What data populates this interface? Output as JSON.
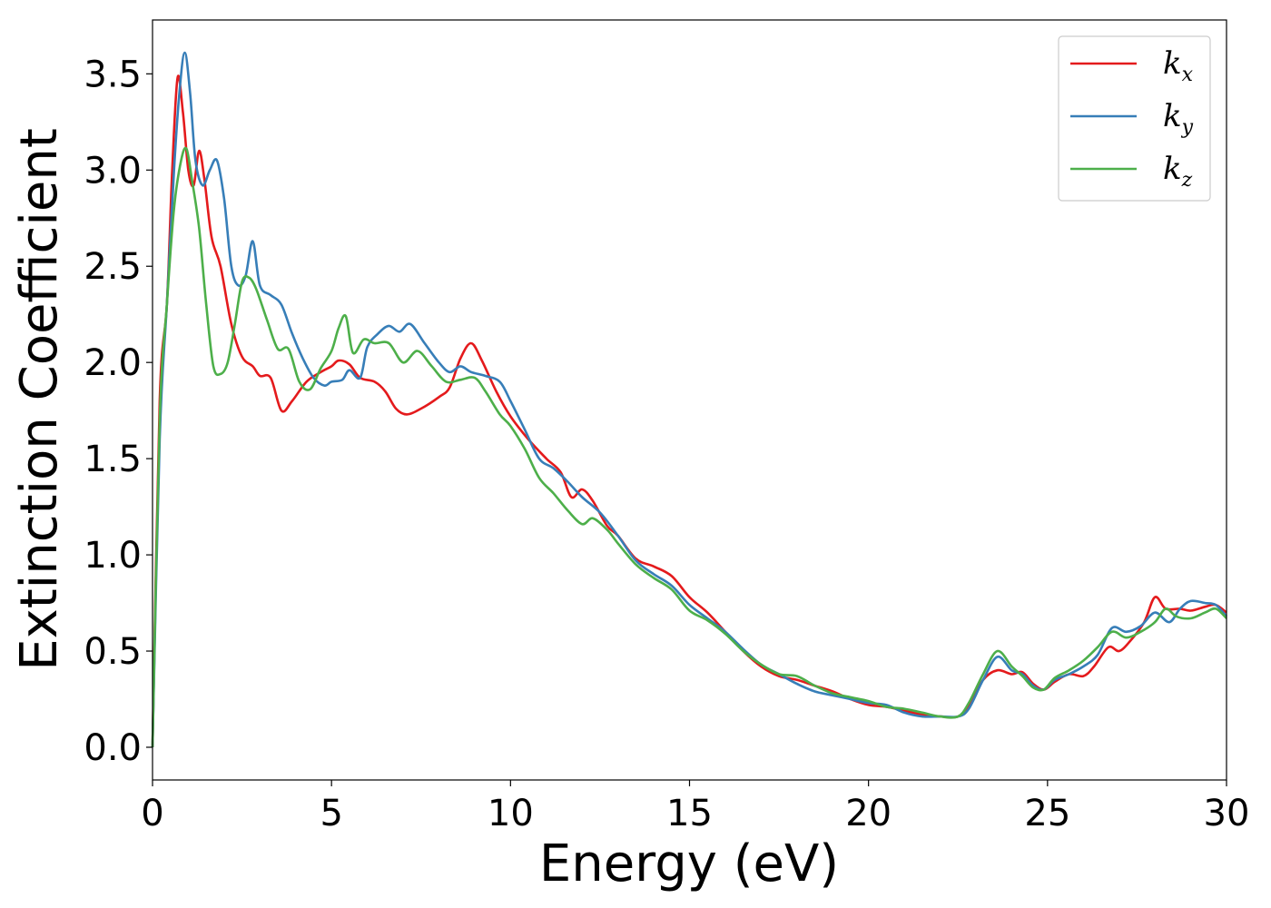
{
  "chart_data": {
    "type": "line",
    "title": "",
    "xlabel": "Energy (eV)",
    "ylabel": "Extinction Coefficient",
    "xlim": [
      0,
      30
    ],
    "ylim": [
      -0.17,
      3.78
    ],
    "xticks": [
      0,
      5,
      10,
      15,
      20,
      25,
      30
    ],
    "xtick_labels": [
      "0",
      "5",
      "10",
      "15",
      "20",
      "25",
      "30"
    ],
    "yticks": [
      0.0,
      0.5,
      1.0,
      1.5,
      2.0,
      2.5,
      3.0,
      3.5
    ],
    "ytick_labels": [
      "0.0",
      "0.5",
      "1.0",
      "1.5",
      "2.0",
      "2.5",
      "3.0",
      "3.5"
    ],
    "grid": false,
    "legend_position": "top-right",
    "series": [
      {
        "name": "k_x",
        "label_base": "k",
        "label_sub": "x",
        "color": "#e41a1c",
        "points": [
          [
            0,
            0
          ],
          [
            0.2,
            1.8
          ],
          [
            0.4,
            2.3
          ],
          [
            0.55,
            3.0
          ],
          [
            0.7,
            3.48
          ],
          [
            0.85,
            3.3
          ],
          [
            1.0,
            3.0
          ],
          [
            1.15,
            2.92
          ],
          [
            1.3,
            3.1
          ],
          [
            1.45,
            2.95
          ],
          [
            1.65,
            2.65
          ],
          [
            1.9,
            2.5
          ],
          [
            2.2,
            2.2
          ],
          [
            2.5,
            2.03
          ],
          [
            2.8,
            1.98
          ],
          [
            3.0,
            1.93
          ],
          [
            3.3,
            1.92
          ],
          [
            3.6,
            1.75
          ],
          [
            3.9,
            1.8
          ],
          [
            4.3,
            1.9
          ],
          [
            4.7,
            1.95
          ],
          [
            5.0,
            1.98
          ],
          [
            5.2,
            2.01
          ],
          [
            5.5,
            1.99
          ],
          [
            5.8,
            1.92
          ],
          [
            6.2,
            1.9
          ],
          [
            6.5,
            1.85
          ],
          [
            6.8,
            1.76
          ],
          [
            7.1,
            1.73
          ],
          [
            7.5,
            1.76
          ],
          [
            8.0,
            1.82
          ],
          [
            8.3,
            1.87
          ],
          [
            8.6,
            2.02
          ],
          [
            8.9,
            2.1
          ],
          [
            9.2,
            2.01
          ],
          [
            9.6,
            1.85
          ],
          [
            10.0,
            1.72
          ],
          [
            10.5,
            1.6
          ],
          [
            11.0,
            1.5
          ],
          [
            11.4,
            1.43
          ],
          [
            11.7,
            1.3
          ],
          [
            12.0,
            1.34
          ],
          [
            12.3,
            1.28
          ],
          [
            12.7,
            1.15
          ],
          [
            13.0,
            1.1
          ],
          [
            13.5,
            0.98
          ],
          [
            14.0,
            0.94
          ],
          [
            14.5,
            0.89
          ],
          [
            15.0,
            0.78
          ],
          [
            15.5,
            0.7
          ],
          [
            16.0,
            0.6
          ],
          [
            16.5,
            0.5
          ],
          [
            17.0,
            0.42
          ],
          [
            17.5,
            0.37
          ],
          [
            18.0,
            0.35
          ],
          [
            18.5,
            0.32
          ],
          [
            19.0,
            0.29
          ],
          [
            19.5,
            0.25
          ],
          [
            20.0,
            0.22
          ],
          [
            20.5,
            0.21
          ],
          [
            21.0,
            0.19
          ],
          [
            21.5,
            0.17
          ],
          [
            22.0,
            0.16
          ],
          [
            22.5,
            0.16
          ],
          [
            22.8,
            0.22
          ],
          [
            23.2,
            0.35
          ],
          [
            23.6,
            0.4
          ],
          [
            24.0,
            0.38
          ],
          [
            24.3,
            0.39
          ],
          [
            24.6,
            0.33
          ],
          [
            24.9,
            0.3
          ],
          [
            25.2,
            0.34
          ],
          [
            25.6,
            0.38
          ],
          [
            26.0,
            0.37
          ],
          [
            26.3,
            0.42
          ],
          [
            26.7,
            0.52
          ],
          [
            27.0,
            0.5
          ],
          [
            27.3,
            0.55
          ],
          [
            27.7,
            0.65
          ],
          [
            28.0,
            0.78
          ],
          [
            28.3,
            0.72
          ],
          [
            28.7,
            0.72
          ],
          [
            29.0,
            0.71
          ],
          [
            29.4,
            0.73
          ],
          [
            29.7,
            0.74
          ],
          [
            30.0,
            0.7
          ]
        ]
      },
      {
        "name": "k_y",
        "label_base": "k",
        "label_sub": "y",
        "color": "#377eb8",
        "points": [
          [
            0,
            0
          ],
          [
            0.2,
            1.6
          ],
          [
            0.4,
            2.3
          ],
          [
            0.6,
            3.0
          ],
          [
            0.75,
            3.4
          ],
          [
            0.9,
            3.61
          ],
          [
            1.05,
            3.4
          ],
          [
            1.2,
            3.05
          ],
          [
            1.4,
            2.92
          ],
          [
            1.6,
            3.0
          ],
          [
            1.8,
            3.05
          ],
          [
            2.0,
            2.85
          ],
          [
            2.2,
            2.5
          ],
          [
            2.4,
            2.4
          ],
          [
            2.6,
            2.45
          ],
          [
            2.8,
            2.63
          ],
          [
            3.0,
            2.4
          ],
          [
            3.3,
            2.35
          ],
          [
            3.6,
            2.3
          ],
          [
            3.9,
            2.15
          ],
          [
            4.2,
            2.02
          ],
          [
            4.5,
            1.92
          ],
          [
            4.8,
            1.88
          ],
          [
            5.0,
            1.9
          ],
          [
            5.3,
            1.91
          ],
          [
            5.5,
            1.96
          ],
          [
            5.8,
            1.92
          ],
          [
            6.0,
            2.08
          ],
          [
            6.3,
            2.15
          ],
          [
            6.6,
            2.19
          ],
          [
            6.9,
            2.16
          ],
          [
            7.2,
            2.2
          ],
          [
            7.6,
            2.1
          ],
          [
            8.0,
            2.0
          ],
          [
            8.3,
            1.95
          ],
          [
            8.6,
            1.98
          ],
          [
            8.9,
            1.95
          ],
          [
            9.3,
            1.93
          ],
          [
            9.7,
            1.9
          ],
          [
            10.0,
            1.8
          ],
          [
            10.4,
            1.65
          ],
          [
            10.8,
            1.5
          ],
          [
            11.2,
            1.45
          ],
          [
            11.6,
            1.38
          ],
          [
            12.0,
            1.3
          ],
          [
            12.5,
            1.22
          ],
          [
            13.0,
            1.1
          ],
          [
            13.5,
            0.97
          ],
          [
            14.0,
            0.9
          ],
          [
            14.5,
            0.84
          ],
          [
            15.0,
            0.74
          ],
          [
            15.5,
            0.67
          ],
          [
            16.0,
            0.6
          ],
          [
            16.5,
            0.51
          ],
          [
            17.0,
            0.43
          ],
          [
            17.5,
            0.38
          ],
          [
            18.0,
            0.33
          ],
          [
            18.5,
            0.29
          ],
          [
            19.0,
            0.27
          ],
          [
            19.5,
            0.25
          ],
          [
            20.0,
            0.23
          ],
          [
            20.5,
            0.22
          ],
          [
            21.0,
            0.18
          ],
          [
            21.5,
            0.16
          ],
          [
            22.0,
            0.16
          ],
          [
            22.5,
            0.16
          ],
          [
            22.8,
            0.2
          ],
          [
            23.2,
            0.35
          ],
          [
            23.6,
            0.47
          ],
          [
            24.0,
            0.4
          ],
          [
            24.3,
            0.38
          ],
          [
            24.6,
            0.32
          ],
          [
            24.9,
            0.3
          ],
          [
            25.2,
            0.35
          ],
          [
            25.6,
            0.38
          ],
          [
            26.0,
            0.42
          ],
          [
            26.4,
            0.48
          ],
          [
            26.8,
            0.62
          ],
          [
            27.2,
            0.6
          ],
          [
            27.6,
            0.63
          ],
          [
            28.0,
            0.7
          ],
          [
            28.4,
            0.65
          ],
          [
            28.7,
            0.72
          ],
          [
            29.0,
            0.76
          ],
          [
            29.4,
            0.75
          ],
          [
            29.7,
            0.74
          ],
          [
            30.0,
            0.68
          ]
        ]
      },
      {
        "name": "k_z",
        "label_base": "k",
        "label_sub": "z",
        "color": "#4daf4a",
        "points": [
          [
            0,
            0
          ],
          [
            0.2,
            1.7
          ],
          [
            0.4,
            2.3
          ],
          [
            0.6,
            2.8
          ],
          [
            0.8,
            3.05
          ],
          [
            0.95,
            3.11
          ],
          [
            1.1,
            2.95
          ],
          [
            1.3,
            2.7
          ],
          [
            1.5,
            2.3
          ],
          [
            1.7,
            1.98
          ],
          [
            1.9,
            1.94
          ],
          [
            2.1,
            2.0
          ],
          [
            2.3,
            2.2
          ],
          [
            2.5,
            2.42
          ],
          [
            2.7,
            2.44
          ],
          [
            2.9,
            2.38
          ],
          [
            3.2,
            2.22
          ],
          [
            3.5,
            2.07
          ],
          [
            3.8,
            2.07
          ],
          [
            4.1,
            1.9
          ],
          [
            4.4,
            1.86
          ],
          [
            4.7,
            1.97
          ],
          [
            5.0,
            2.06
          ],
          [
            5.2,
            2.18
          ],
          [
            5.4,
            2.24
          ],
          [
            5.6,
            2.05
          ],
          [
            5.9,
            2.12
          ],
          [
            6.2,
            2.1
          ],
          [
            6.6,
            2.1
          ],
          [
            7.0,
            2.0
          ],
          [
            7.4,
            2.06
          ],
          [
            7.8,
            1.98
          ],
          [
            8.2,
            1.9
          ],
          [
            8.6,
            1.91
          ],
          [
            9.0,
            1.92
          ],
          [
            9.3,
            1.85
          ],
          [
            9.7,
            1.73
          ],
          [
            10.0,
            1.67
          ],
          [
            10.4,
            1.55
          ],
          [
            10.8,
            1.4
          ],
          [
            11.2,
            1.32
          ],
          [
            11.6,
            1.23
          ],
          [
            12.0,
            1.16
          ],
          [
            12.3,
            1.19
          ],
          [
            12.7,
            1.13
          ],
          [
            13.0,
            1.06
          ],
          [
            13.5,
            0.95
          ],
          [
            14.0,
            0.88
          ],
          [
            14.5,
            0.82
          ],
          [
            15.0,
            0.71
          ],
          [
            15.5,
            0.66
          ],
          [
            16.0,
            0.59
          ],
          [
            16.5,
            0.5
          ],
          [
            17.0,
            0.43
          ],
          [
            17.5,
            0.38
          ],
          [
            18.0,
            0.37
          ],
          [
            18.5,
            0.32
          ],
          [
            19.0,
            0.28
          ],
          [
            19.5,
            0.26
          ],
          [
            20.0,
            0.24
          ],
          [
            20.5,
            0.21
          ],
          [
            21.0,
            0.2
          ],
          [
            21.5,
            0.18
          ],
          [
            22.0,
            0.16
          ],
          [
            22.5,
            0.16
          ],
          [
            22.8,
            0.23
          ],
          [
            23.2,
            0.38
          ],
          [
            23.6,
            0.5
          ],
          [
            24.0,
            0.42
          ],
          [
            24.3,
            0.37
          ],
          [
            24.6,
            0.31
          ],
          [
            24.9,
            0.3
          ],
          [
            25.2,
            0.36
          ],
          [
            25.6,
            0.4
          ],
          [
            26.0,
            0.45
          ],
          [
            26.4,
            0.52
          ],
          [
            26.8,
            0.6
          ],
          [
            27.2,
            0.57
          ],
          [
            27.6,
            0.6
          ],
          [
            28.0,
            0.65
          ],
          [
            28.3,
            0.72
          ],
          [
            28.6,
            0.68
          ],
          [
            29.0,
            0.67
          ],
          [
            29.4,
            0.7
          ],
          [
            29.7,
            0.72
          ],
          [
            30.0,
            0.67
          ]
        ]
      }
    ]
  }
}
